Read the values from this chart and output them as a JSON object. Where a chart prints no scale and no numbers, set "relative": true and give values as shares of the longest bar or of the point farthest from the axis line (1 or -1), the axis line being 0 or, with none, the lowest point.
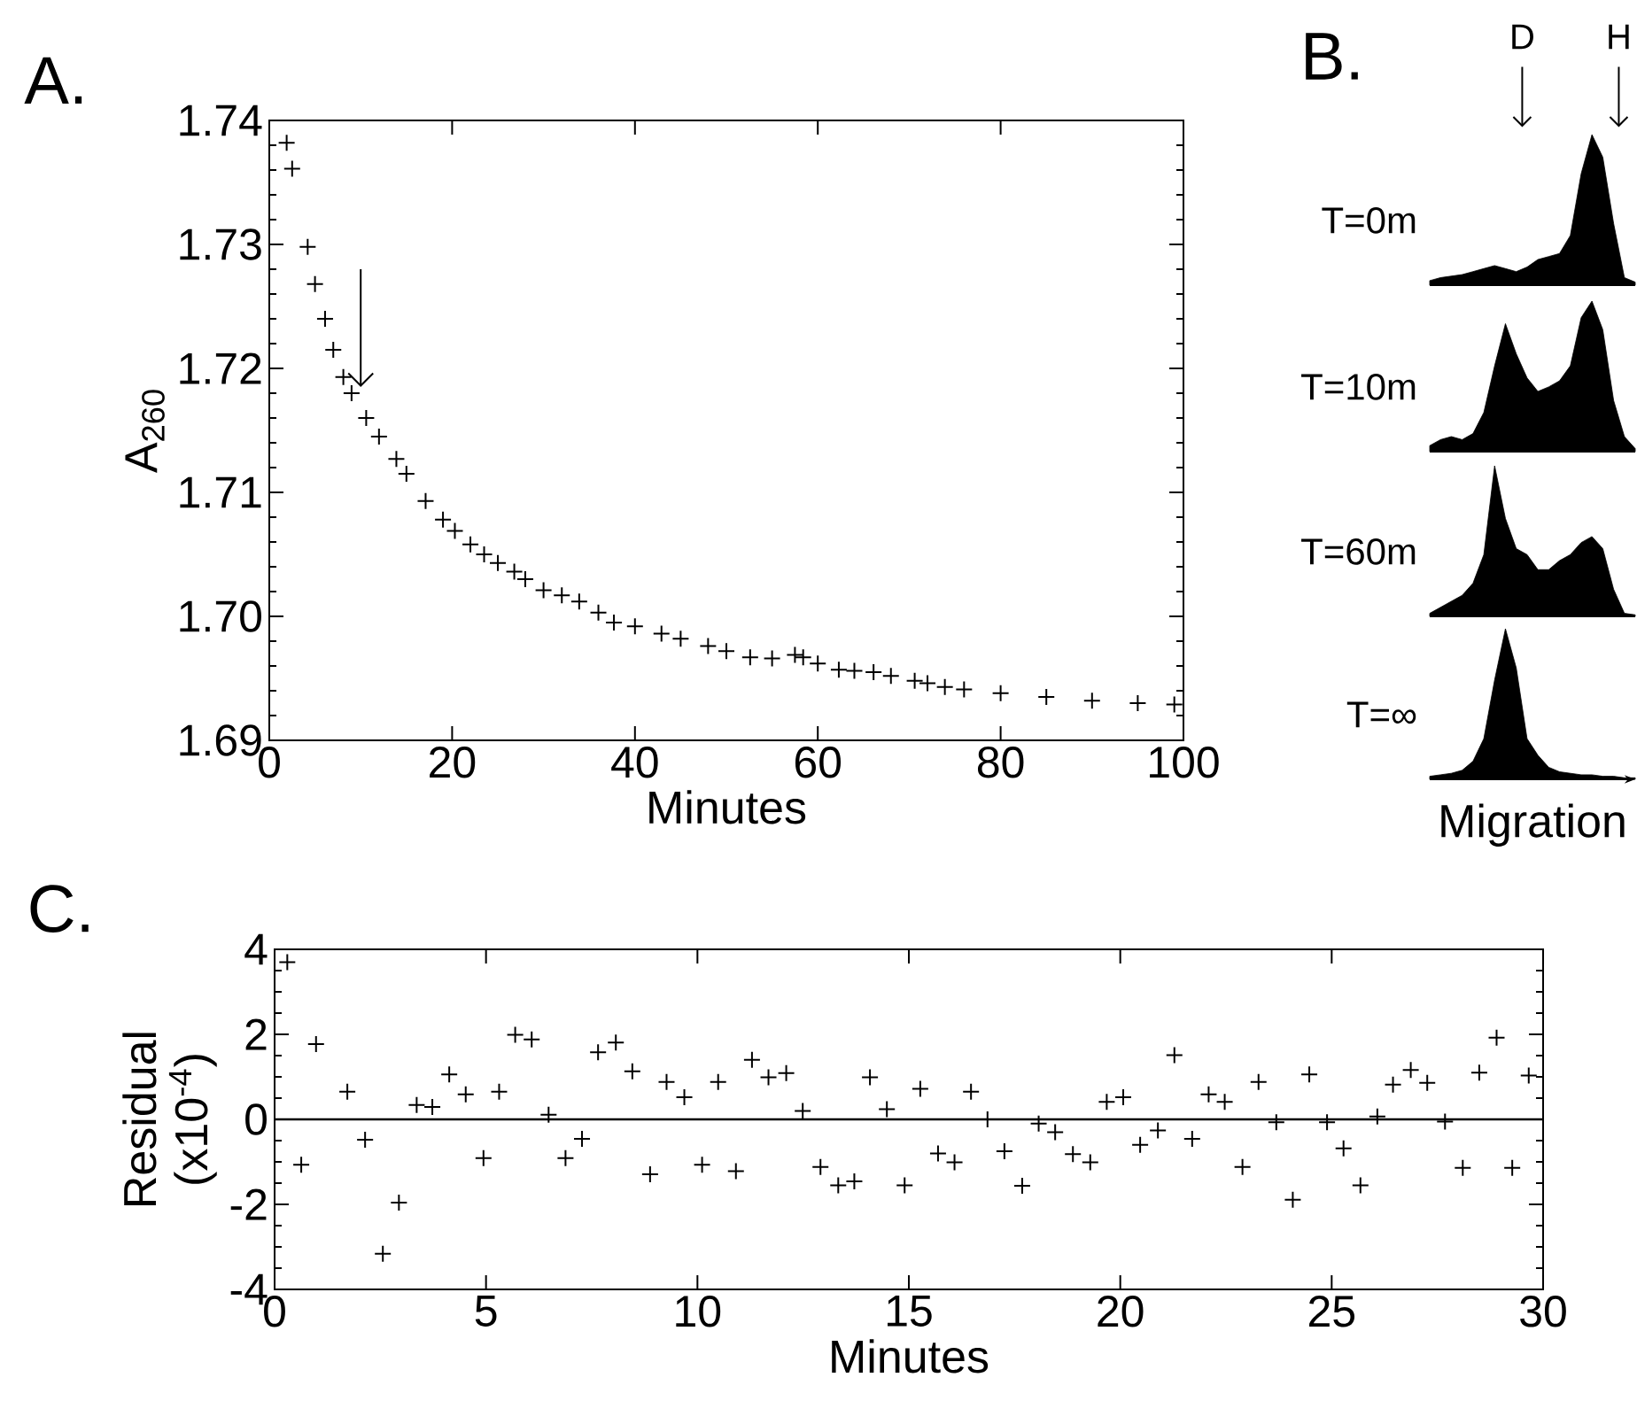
{
  "chart_data": [
    {
      "type": "scatter",
      "title": "A.",
      "xlabel": "Minutes",
      "ylabel": "A$_{260}$",
      "marker": "cross",
      "color": "#000000",
      "xlim": [
        0,
        100
      ],
      "xticks": [
        0,
        20,
        40,
        60,
        80,
        100
      ],
      "ylim": [
        1.69,
        1.74
      ],
      "yticks": [
        1.69,
        {
          "value": 1.7,
          "label": "1.70"
        },
        1.71,
        1.72,
        1.73,
        1.74
      ],
      "x": [
        1.9,
        2.5,
        4.2,
        5,
        6.1,
        7,
        8.1,
        9,
        10.6,
        12,
        13.9,
        15,
        17.1,
        19,
        20.3,
        22,
        23.5,
        25,
        26.8,
        28,
        30,
        32,
        33.9,
        36,
        37.7,
        40,
        42.9,
        45,
        48,
        50,
        52.6,
        55,
        57.5,
        58.4,
        60,
        62.3,
        64,
        66.1,
        68,
        70.6,
        72,
        73.9,
        76,
        80,
        85,
        90,
        95,
        99
      ],
      "values": [
        1.7382,
        1.7361,
        1.7298,
        1.7268,
        1.724,
        1.7215,
        1.7193,
        1.718,
        1.716,
        1.7145,
        1.7127,
        1.7115,
        1.7093,
        1.7078,
        1.7069,
        1.7058,
        1.705,
        1.7043,
        1.7036,
        1.703,
        1.7021,
        1.7017,
        1.7012,
        1.7003,
        1.6995,
        1.6992,
        1.6986,
        1.6982,
        1.6976,
        1.6972,
        1.6967,
        1.6966,
        1.6969,
        1.6967,
        1.6962,
        1.6957,
        1.6956,
        1.6955,
        1.6952,
        1.6948,
        1.6946,
        1.6943,
        1.6941,
        1.6938,
        1.6935,
        1.6932,
        1.693,
        1.6929
      ]
    },
    {
      "type": "area",
      "title": "B.",
      "ylabel": "T=0m",
      "annotations": [
        "D",
        "H"
      ],
      "relative": true,
      "tick_labels": false,
      "color": "#000000",
      "categories": [
        null,
        null,
        null,
        null,
        null,
        null,
        null,
        null,
        null,
        null,
        null,
        null,
        null,
        null,
        null,
        null,
        null,
        null,
        null,
        null
      ],
      "values": [
        0.03,
        0.05,
        0.06,
        0.07,
        0.09,
        0.11,
        0.13,
        0.11,
        0.09,
        0.12,
        0.17,
        0.19,
        0.21,
        0.33,
        0.74,
        1,
        0.85,
        0.41,
        0.05,
        0.02
      ]
    },
    {
      "type": "area",
      "ylabel": "T=10m",
      "relative": true,
      "tick_labels": false,
      "color": "#000000",
      "categories": [
        null,
        null,
        null,
        null,
        null,
        null,
        null,
        null,
        null,
        null,
        null,
        null,
        null,
        null,
        null,
        null,
        null,
        null,
        null,
        null
      ],
      "values": [
        0.04,
        0.08,
        0.1,
        0.08,
        0.12,
        0.26,
        0.57,
        0.85,
        0.65,
        0.49,
        0.4,
        0.43,
        0.47,
        0.57,
        0.89,
        1,
        0.81,
        0.34,
        0.1,
        0.02
      ]
    },
    {
      "type": "area",
      "ylabel": "T=60m",
      "relative": true,
      "tick_labels": false,
      "color": "#000000",
      "categories": [
        null,
        null,
        null,
        null,
        null,
        null,
        null,
        null,
        null,
        null,
        null,
        null,
        null,
        null,
        null,
        null,
        null,
        null,
        null,
        null
      ],
      "values": [
        0.02,
        0.06,
        0.1,
        0.14,
        0.22,
        0.41,
        1,
        0.65,
        0.45,
        0.41,
        0.31,
        0.31,
        0.37,
        0.41,
        0.49,
        0.53,
        0.45,
        0.18,
        0.02,
        0.01
      ]
    },
    {
      "type": "area",
      "ylabel": "T=∞",
      "xlabel": "Migration",
      "relative": true,
      "tick_labels": false,
      "color": "#000000",
      "categories": [
        null,
        null,
        null,
        null,
        null,
        null,
        null,
        null,
        null,
        null,
        null,
        null,
        null,
        null,
        null,
        null,
        null,
        null,
        null,
        null
      ],
      "values": [
        0.02,
        0.03,
        0.04,
        0.06,
        0.12,
        0.27,
        0.66,
        1,
        0.74,
        0.27,
        0.16,
        0.08,
        0.05,
        0.04,
        0.03,
        0.03,
        0.02,
        0.02,
        0.01,
        0.01
      ]
    },
    {
      "type": "scatter",
      "title": "C.",
      "xlabel": "Minutes",
      "ylabel": "Residual (x10$^{-4}$)",
      "marker": "cross",
      "color": "#000000",
      "xlim": [
        0,
        30
      ],
      "xticks": [
        0,
        5,
        10,
        15,
        20,
        25,
        30
      ],
      "ylim": [
        -4,
        4
      ],
      "yticks": [
        -4,
        -2,
        0,
        2,
        4
      ],
      "ref_lines": [
        {
          "axis": "y",
          "value": 0
        }
      ],
      "x": [
        0.3,
        0.63,
        0.98,
        1.72,
        2.14,
        2.56,
        2.94,
        3.36,
        3.73,
        4.13,
        4.52,
        4.94,
        5.31,
        5.69,
        6.08,
        6.48,
        6.88,
        7.27,
        7.65,
        8.07,
        8.46,
        8.88,
        9.27,
        9.69,
        10.11,
        10.49,
        10.91,
        11.29,
        11.68,
        12.1,
        12.49,
        12.91,
        13.33,
        13.71,
        14.08,
        14.48,
        14.9,
        15.27,
        15.69,
        16.08,
        16.47,
        16.86,
        17.26,
        17.68,
        18.07,
        18.46,
        18.88,
        19.29,
        19.68,
        20.07,
        20.47,
        20.89,
        21.28,
        21.7,
        22.09,
        22.47,
        22.89,
        23.27,
        23.69,
        24.08,
        24.47,
        24.89,
        25.28,
        25.68,
        26.08,
        26.45,
        26.87,
        27.26,
        27.68,
        28.1,
        28.49,
        28.9,
        29.27,
        29.66
      ],
      "values": [
        3.7,
        -1.07,
        1.77,
        0.65,
        -0.48,
        -3.16,
        -1.96,
        0.34,
        0.29,
        1.06,
        0.59,
        -0.91,
        0.65,
        1.99,
        1.88,
        0.11,
        -0.91,
        -0.46,
        1.58,
        1.81,
        1.13,
        -1.29,
        0.88,
        0.52,
        -1.07,
        0.88,
        -1.22,
        1.4,
        0.99,
        1.09,
        0.2,
        -1.12,
        -1.55,
        -1.46,
        0.99,
        0.24,
        -1.55,
        0.72,
        -0.8,
        -1.01,
        0.65,
        0.0,
        -0.75,
        -1.56,
        -0.1,
        -0.3,
        -0.82,
        -1.01,
        0.41,
        0.52,
        -0.6,
        -0.26,
        1.51,
        -0.46,
        0.59,
        0.41,
        -1.12,
        0.88,
        -0.07,
        -1.89,
        1.06,
        -0.07,
        -0.68,
        -1.55,
        0.07,
        0.82,
        1.16,
        0.86,
        -0.05,
        -1.14,
        1.1,
        1.92,
        -1.14,
        1.03
      ]
    }
  ]
}
